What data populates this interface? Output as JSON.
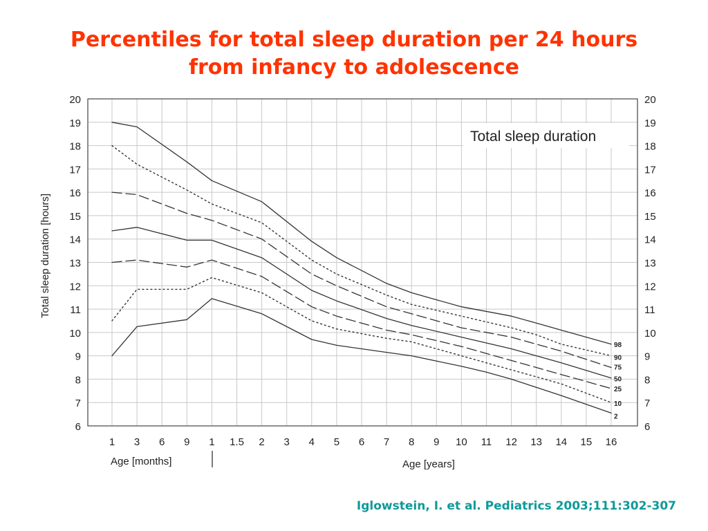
{
  "slide": {
    "title_line1": "Percentiles for total sleep duration per 24 hours",
    "title_line2": "from infancy to adolescence",
    "citation": "Iglowstein, I. et al. Pediatrics 2003;111:302-307",
    "title_color": "#ff3300",
    "citation_color": "#0f9999"
  },
  "chart_data": {
    "type": "line",
    "title": "Total sleep duration",
    "ylabel": "Total sleep duration [hours]",
    "xlabel_months": "Age [months]",
    "xlabel_years": "Age [years]",
    "ylim": [
      6,
      20
    ],
    "y_ticks": [
      6,
      7,
      8,
      9,
      10,
      11,
      12,
      13,
      14,
      15,
      16,
      17,
      18,
      19,
      20
    ],
    "y_axis_both_sides": true,
    "grid": true,
    "legend": "line-end labels at right",
    "categories": [
      "1",
      "3",
      "6",
      "9",
      "1",
      "1.5",
      "2",
      "3",
      "4",
      "5",
      "6",
      "7",
      "8",
      "9",
      "10",
      "11",
      "12",
      "13",
      "14",
      "15",
      "16"
    ],
    "category_units": [
      "months",
      "months",
      "months",
      "months",
      "years",
      "years",
      "years",
      "years",
      "years",
      "years",
      "years",
      "years",
      "years",
      "years",
      "years",
      "years",
      "years",
      "years",
      "years",
      "years",
      "years"
    ],
    "series": [
      {
        "name": "98",
        "style": "solid",
        "x": [
          "1",
          "3",
          "9",
          "1",
          "2",
          "4",
          "5",
          "7",
          "8",
          "9",
          "10",
          "12",
          "13",
          "14",
          "16"
        ],
        "x_units": [
          "months",
          "months",
          "months",
          "years",
          "years",
          "years",
          "years",
          "years",
          "years",
          "years",
          "years",
          "years",
          "years",
          "years",
          "years"
        ],
        "values": [
          19.0,
          18.8,
          17.3,
          16.5,
          15.6,
          13.9,
          13.2,
          12.1,
          11.7,
          11.4,
          11.1,
          10.7,
          10.4,
          10.1,
          9.5
        ]
      },
      {
        "name": "90",
        "style": "dotted",
        "x": [
          "1",
          "3",
          "9",
          "1",
          "2",
          "4",
          "5",
          "7",
          "8",
          "10",
          "12",
          "13",
          "14",
          "16"
        ],
        "x_units": [
          "months",
          "months",
          "months",
          "years",
          "years",
          "years",
          "years",
          "years",
          "years",
          "years",
          "years",
          "years",
          "years",
          "years"
        ],
        "values": [
          18.0,
          17.2,
          16.1,
          15.5,
          14.7,
          13.1,
          12.5,
          11.6,
          11.2,
          10.7,
          10.2,
          9.9,
          9.5,
          9.0
        ]
      },
      {
        "name": "75",
        "style": "dashed",
        "x": [
          "1",
          "3",
          "9",
          "1",
          "2",
          "4",
          "5",
          "7",
          "8",
          "10",
          "12",
          "13",
          "14",
          "16"
        ],
        "x_units": [
          "months",
          "months",
          "months",
          "years",
          "years",
          "years",
          "years",
          "years",
          "years",
          "years",
          "years",
          "years",
          "years",
          "years"
        ],
        "values": [
          16.0,
          15.9,
          15.1,
          14.8,
          14.0,
          12.5,
          12.0,
          11.1,
          10.8,
          10.2,
          9.8,
          9.5,
          9.2,
          8.5
        ]
      },
      {
        "name": "50",
        "style": "solid",
        "x": [
          "1",
          "3",
          "9",
          "1",
          "2",
          "4",
          "5",
          "7",
          "8",
          "10",
          "12",
          "13",
          "14",
          "16"
        ],
        "x_units": [
          "months",
          "months",
          "months",
          "years",
          "years",
          "years",
          "years",
          "years",
          "years",
          "years",
          "years",
          "years",
          "years",
          "years"
        ],
        "values": [
          14.35,
          14.5,
          13.95,
          13.95,
          13.2,
          11.8,
          11.35,
          10.6,
          10.3,
          9.8,
          9.3,
          9.0,
          8.7,
          8.05
        ]
      },
      {
        "name": "25",
        "style": "dashed",
        "x": [
          "1",
          "3",
          "9",
          "1",
          "2",
          "4",
          "5",
          "7",
          "8",
          "10",
          "12",
          "13",
          "14",
          "16"
        ],
        "x_units": [
          "months",
          "months",
          "months",
          "years",
          "years",
          "years",
          "years",
          "years",
          "years",
          "years",
          "years",
          "years",
          "years",
          "years"
        ],
        "values": [
          13.0,
          13.1,
          12.8,
          13.1,
          12.4,
          11.1,
          10.7,
          10.1,
          9.9,
          9.4,
          8.8,
          8.5,
          8.2,
          7.6
        ]
      },
      {
        "name": "10",
        "style": "dotted",
        "x": [
          "1",
          "3",
          "9",
          "1",
          "2",
          "4",
          "5",
          "7",
          "8",
          "10",
          "12",
          "13",
          "14",
          "16"
        ],
        "x_units": [
          "months",
          "months",
          "months",
          "years",
          "years",
          "years",
          "years",
          "years",
          "years",
          "years",
          "years",
          "years",
          "years",
          "years"
        ],
        "values": [
          10.5,
          11.85,
          11.85,
          12.35,
          11.7,
          10.5,
          10.15,
          9.75,
          9.6,
          9.0,
          8.4,
          8.1,
          7.8,
          7.0
        ]
      },
      {
        "name": "2",
        "style": "solid",
        "x": [
          "1",
          "3",
          "9",
          "1",
          "2",
          "4",
          "5",
          "7",
          "8",
          "10",
          "11",
          "12",
          "13",
          "14",
          "16"
        ],
        "x_units": [
          "months",
          "months",
          "months",
          "years",
          "years",
          "years",
          "years",
          "years",
          "years",
          "years",
          "years",
          "years",
          "years",
          "years",
          "years"
        ],
        "values": [
          9.0,
          10.25,
          10.55,
          11.45,
          10.8,
          9.7,
          9.45,
          9.15,
          9.0,
          8.55,
          8.3,
          8.0,
          7.65,
          7.3,
          6.55
        ]
      }
    ]
  }
}
